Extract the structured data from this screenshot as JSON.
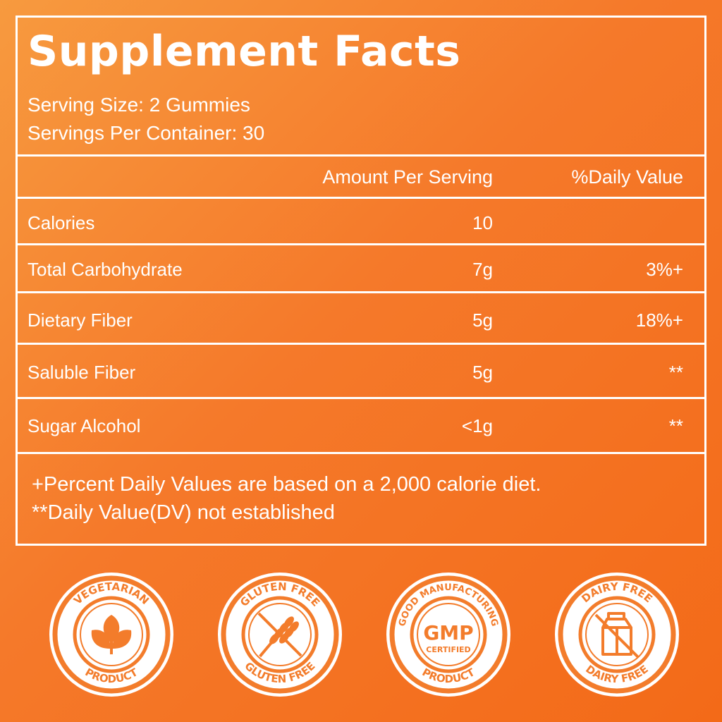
{
  "title": "Supplement Facts",
  "serving_size": "Serving Size: 2 Gummies",
  "servings_per_container": "Servings Per Container: 30",
  "header": {
    "amount": "Amount Per Serving",
    "daily_value": "%Daily Value"
  },
  "rows": [
    {
      "name": "Calories",
      "amount": "10",
      "dv": ""
    },
    {
      "name": "Total Carbohydrate",
      "amount": "7g",
      "dv": "3%+"
    },
    {
      "name": "Dietary Fiber",
      "amount": "5g",
      "dv": "18%+"
    },
    {
      "name": "Saluble Fiber",
      "amount": "5g",
      "dv": "**"
    },
    {
      "name": "Sugar Alcohol",
      "amount": "<1g",
      "dv": "**"
    }
  ],
  "footnotes": [
    "+Percent Daily Values are based on a 2,000 calorie diet.",
    "**Daily Value(DV) not established"
  ],
  "badges": [
    {
      "top": "VEGETARIAN",
      "bottom": "PRODUCT",
      "icon": "leaves-icon"
    },
    {
      "top": "GLUTEN FREE",
      "bottom": "GLUTEN FREE",
      "icon": "wheat-crossed-icon"
    },
    {
      "top": "GOOD MANUFACTURING",
      "bottom": "PRODUCT",
      "icon": "gmp-icon",
      "center_main": "GMP",
      "center_sub": "CERTIFIED"
    },
    {
      "top": "DAIRY FREE",
      "bottom": "DAIRY FREE",
      "icon": "milk-carton-crossed-icon"
    }
  ],
  "colors": {
    "accent": "#f37c2b",
    "panel_border": "#ffffff",
    "badge_bg": "#ffffff"
  }
}
